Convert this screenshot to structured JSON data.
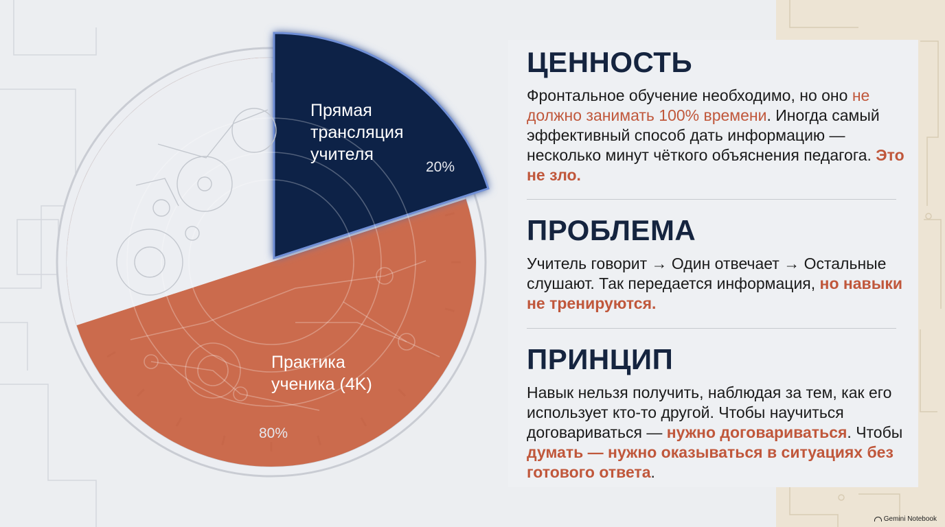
{
  "chart_data": {
    "type": "pie",
    "slices": [
      {
        "label": "Прямая трансляция учителя",
        "label_lines": [
          "Прямая",
          "трансляция",
          "учителя"
        ],
        "value": 20,
        "value_label": "20%",
        "color": "#0e2246"
      },
      {
        "label": "Практика ученика (4K)",
        "label_lines": [
          "Практика",
          "ученика (4K)"
        ],
        "value": 80,
        "value_label": "80%",
        "color": "#c8603f"
      }
    ]
  },
  "sections": [
    {
      "heading": "ЦЕННОСТЬ",
      "text": [
        {
          "t": "Фронтальное обучение необходимо, но оно ",
          "s": "n"
        },
        {
          "t": "не должно занимать 100% времени",
          "s": "h"
        },
        {
          "t": ". Иногда самый эффективный способ дать информацию — несколько минут чёткого объяснения педагога. ",
          "s": "n"
        },
        {
          "t": "Это не зло.",
          "s": "b"
        }
      ]
    },
    {
      "heading": "ПРОБЛЕМА",
      "text": [
        {
          "t": "Учитель говорит → Один отвечает → Остальные слушают. Так передается информация, ",
          "s": "n"
        },
        {
          "t": "но навыки не тренируются.",
          "s": "b"
        }
      ]
    },
    {
      "heading": "ПРИНЦИП",
      "text": [
        {
          "t": "Навык нельзя получить, наблюдая за тем, как его использует кто-то другой. Чтобы научиться договариваться — ",
          "s": "n"
        },
        {
          "t": "нужно договариваться",
          "s": "b"
        },
        {
          "t": ". Чтобы ",
          "s": "n"
        },
        {
          "t": "думать — нужно оказываться в ситуациях без готового ответа",
          "s": "b"
        },
        {
          "t": ".",
          "s": "n"
        }
      ]
    }
  ],
  "branding": {
    "text": "Gemini Notebook"
  },
  "colors": {
    "navy": "#0e2246",
    "accent": "#c8603f",
    "highlight": "#c0573b",
    "heading": "#15243f"
  }
}
